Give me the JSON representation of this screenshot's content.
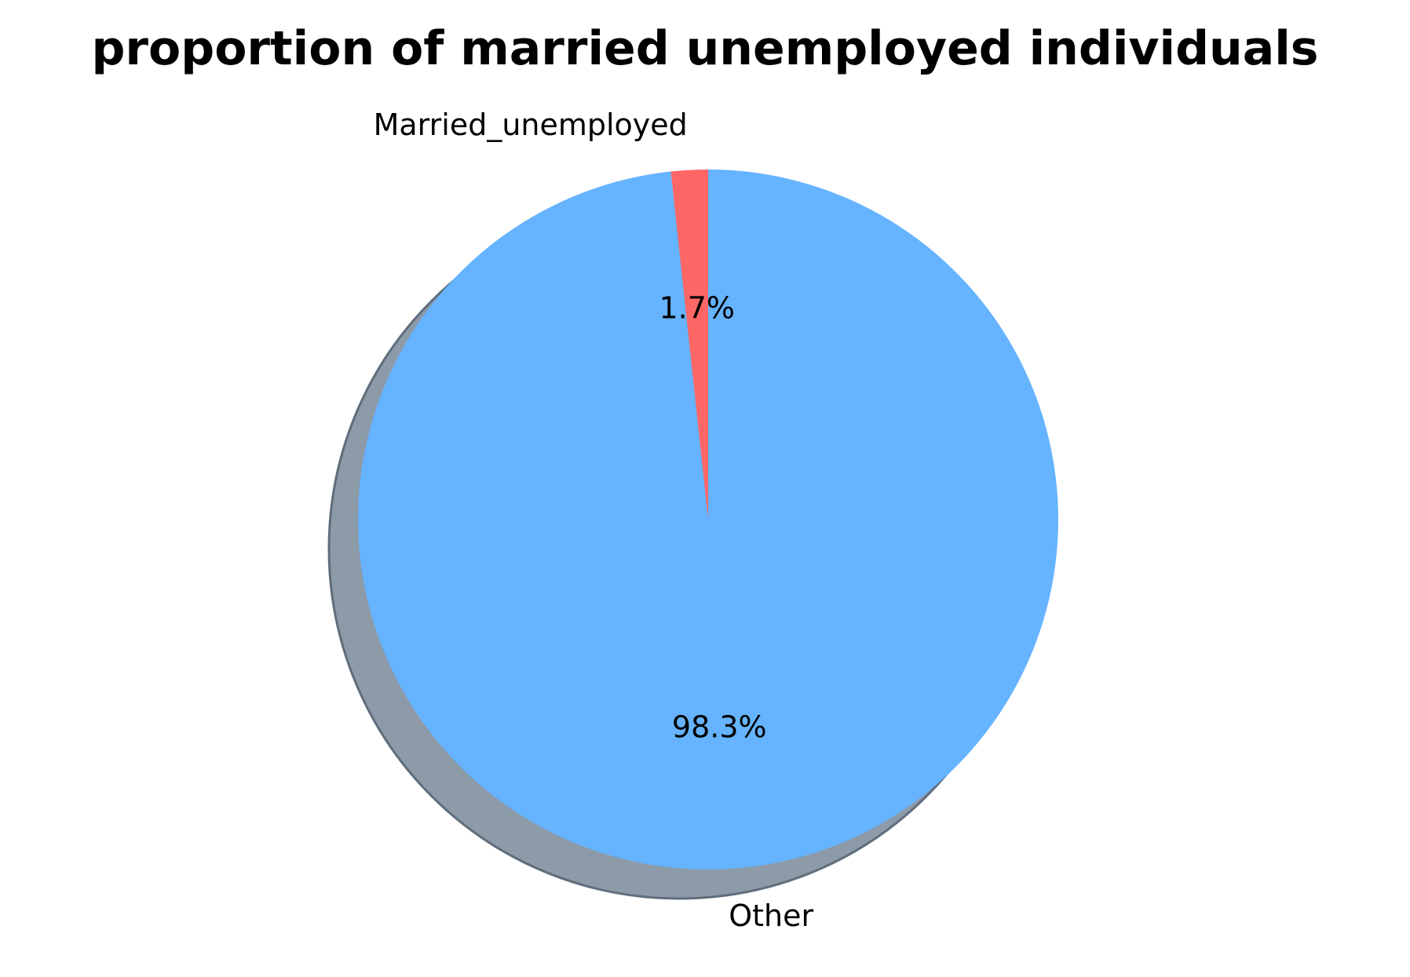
{
  "chart_data": {
    "type": "pie",
    "title": "proportion of married unemployed individuals",
    "categories": [
      "Married_unemployed",
      "Other"
    ],
    "values": [
      1.7,
      98.3
    ],
    "labels": [
      "Married_unemployed",
      "Other"
    ],
    "pct_labels": [
      "1.7%",
      "98.3%"
    ],
    "colors": [
      "#ff6666",
      "#66b3ff"
    ],
    "shadow": true,
    "shadow_color": "#8d9aa8",
    "start_angle": 90
  }
}
